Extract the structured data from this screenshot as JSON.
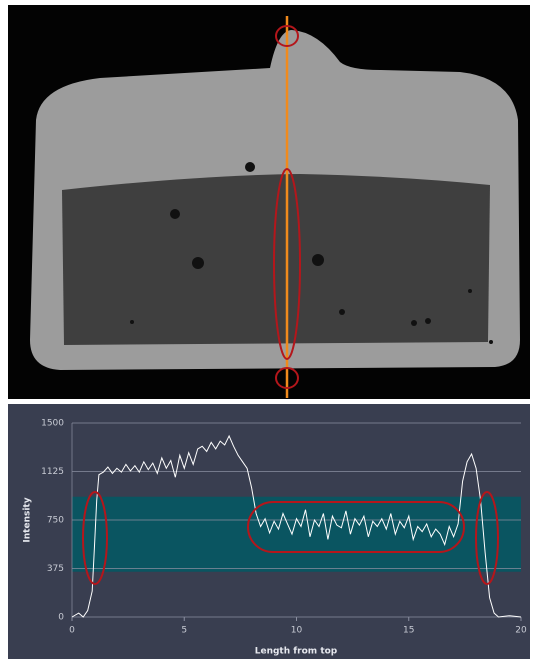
{
  "chart_data": {
    "type": "line",
    "x_label": "Length from top",
    "y_label": "Intensity",
    "x": [
      0,
      0.3,
      0.5,
      0.7,
      0.9,
      1.0,
      1.1,
      1.2,
      1.4,
      1.6,
      1.8,
      2.0,
      2.2,
      2.4,
      2.6,
      2.8,
      3.0,
      3.2,
      3.4,
      3.6,
      3.8,
      4.0,
      4.2,
      4.4,
      4.6,
      4.8,
      5.0,
      5.2,
      5.4,
      5.6,
      5.8,
      6.0,
      6.2,
      6.4,
      6.6,
      6.8,
      7.0,
      7.2,
      7.4,
      7.6,
      7.8,
      8.0,
      8.2,
      8.4,
      8.6,
      8.8,
      9.0,
      9.2,
      9.4,
      9.6,
      9.8,
      10.0,
      10.2,
      10.4,
      10.6,
      10.8,
      11.0,
      11.2,
      11.4,
      11.6,
      11.8,
      12.0,
      12.2,
      12.4,
      12.6,
      12.8,
      13.0,
      13.2,
      13.4,
      13.6,
      13.8,
      14.0,
      14.2,
      14.4,
      14.6,
      14.8,
      15.0,
      15.2,
      15.4,
      15.6,
      15.8,
      16.0,
      16.2,
      16.4,
      16.6,
      16.8,
      17.0,
      17.2,
      17.4,
      17.6,
      17.8,
      18.0,
      18.2,
      18.4,
      18.6,
      18.8,
      19.0,
      19.5,
      20.0
    ],
    "values": [
      0,
      30,
      0,
      50,
      200,
      550,
      900,
      1100,
      1120,
      1160,
      1110,
      1150,
      1120,
      1180,
      1130,
      1170,
      1120,
      1200,
      1140,
      1190,
      1110,
      1230,
      1150,
      1210,
      1080,
      1250,
      1150,
      1270,
      1180,
      1300,
      1320,
      1280,
      1350,
      1300,
      1360,
      1330,
      1400,
      1320,
      1250,
      1200,
      1150,
      1000,
      800,
      700,
      760,
      650,
      740,
      680,
      800,
      720,
      640,
      760,
      700,
      830,
      620,
      750,
      700,
      800,
      600,
      780,
      710,
      690,
      820,
      640,
      760,
      710,
      780,
      620,
      740,
      700,
      760,
      680,
      800,
      640,
      740,
      690,
      780,
      600,
      700,
      660,
      720,
      620,
      680,
      640,
      560,
      700,
      620,
      720,
      1050,
      1200,
      1260,
      1150,
      900,
      500,
      150,
      30,
      0,
      10,
      0
    ],
    "color": "#ffffff",
    "band": [
      350,
      930
    ],
    "band_color": "#0a5561",
    "xlim": [
      0,
      20
    ],
    "xticks": [
      0,
      5,
      10,
      15,
      20
    ],
    "ylim": [
      0,
      1500
    ],
    "yticks": [
      0,
      375,
      750,
      1125,
      1500
    ],
    "grid": true
  }
}
